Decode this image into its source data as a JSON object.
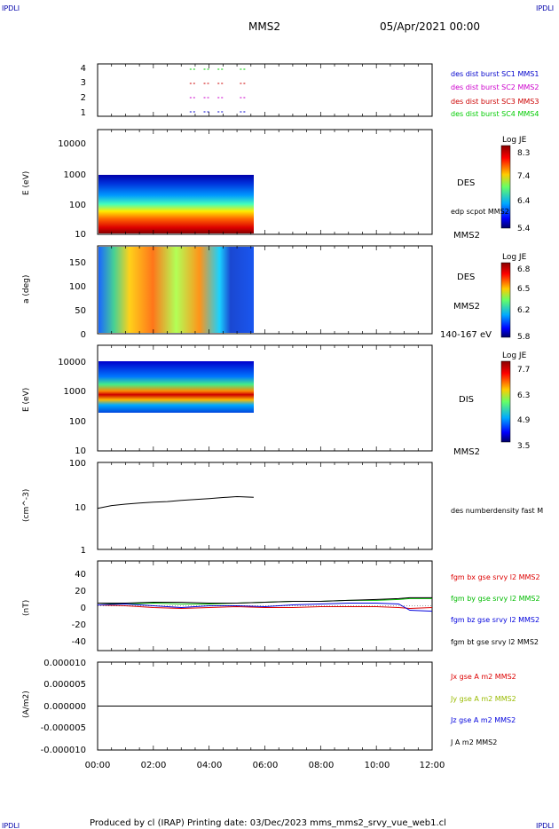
{
  "header": {
    "corner_left": "IPDLI",
    "corner_right": "IPDLI",
    "spacecraft": "MMS2",
    "date": "05/Apr/2021 00:00"
  },
  "footer": {
    "text": "Produced by cl (IRAP)   Printing date: 03/Dec/2023   mms_mms2_srvy_vue_web1.cl",
    "corner_left": "IPDLI",
    "corner_right": "IPDLI"
  },
  "colors": {
    "ch1": "#0000cc",
    "ch2": "#cc00cc",
    "ch3": "#cc0000",
    "ch4": "#00cc00",
    "bx": "#dd0000",
    "by": "#00bb00",
    "bz": "#0000dd",
    "bt": "#000000"
  },
  "chart_data": [
    {
      "type": "scatter",
      "name": "burst availability",
      "ylim": [
        0.5,
        4.5
      ],
      "ytick_labels": [
        "4",
        "3",
        "2",
        "1"
      ],
      "legend": [
        "des dist burst SC1 MMS1",
        "des dist burst SC2 MMS2",
        "des dist burst SC3 MMS3",
        "des dist burst SC4 MMS4"
      ],
      "burst_hours": [
        3.4,
        3.9,
        4.4,
        5.2
      ]
    },
    {
      "type": "heatmap",
      "name": "DES energy spectrogram",
      "ylabel": "E (eV)",
      "ylim": [
        10,
        30000
      ],
      "yscale": "log",
      "ytick_labels": [
        "10000",
        "1000",
        "100",
        "10"
      ],
      "data_hours": [
        0,
        5.6
      ],
      "labels": [
        "DES",
        "edp scpot MMS2",
        "MMS2"
      ],
      "colorbar": {
        "title": "Log JE",
        "ticks": [
          "8.3",
          "7.4",
          "6.4",
          "5.4"
        ]
      }
    },
    {
      "type": "heatmap",
      "name": "DES pitch angle",
      "ylabel": "a (deg)",
      "ylim": [
        0,
        180
      ],
      "ytick_labels": [
        "150",
        "100",
        "50",
        "0"
      ],
      "data_hours": [
        0,
        5.6
      ],
      "labels": [
        "DES",
        "MMS2",
        "140-167 eV"
      ],
      "colorbar": {
        "title": "Log JE",
        "ticks": [
          "6.8",
          "6.5",
          "6.2",
          "5.8"
        ]
      }
    },
    {
      "type": "heatmap",
      "name": "DIS energy spectrogram",
      "ylabel": "E (eV)",
      "ylim": [
        10,
        15000
      ],
      "yscale": "log",
      "ytick_labels": [
        "10000",
        "1000",
        "100",
        "10"
      ],
      "data_hours": [
        0,
        5.6
      ],
      "labels": [
        "DIS",
        "MMS2"
      ],
      "colorbar": {
        "title": "Log JE",
        "ticks": [
          "7.7",
          "6.3",
          "4.9",
          "3.5"
        ]
      }
    },
    {
      "type": "line",
      "name": "density",
      "ylabel": "(cm^-3)",
      "yscale": "log",
      "ylim": [
        1,
        100
      ],
      "ytick_labels": [
        "100",
        "10",
        "1"
      ],
      "legend": [
        "des numberdensity fast M"
      ],
      "x": [
        0,
        0.5,
        1.0,
        1.5,
        2.0,
        2.5,
        3.0,
        3.5,
        4.0,
        4.5,
        5.0,
        5.6
      ],
      "y": [
        8.8,
        10.2,
        11.0,
        11.6,
        12.2,
        12.6,
        13.4,
        14.0,
        14.8,
        15.6,
        16.4,
        15.8
      ]
    },
    {
      "type": "line",
      "name": "magnetic field",
      "ylabel": "(nT)",
      "ylim": [
        -50,
        50
      ],
      "ytick_labels": [
        "40",
        "20",
        "0",
        "-20",
        "-40"
      ],
      "x": [
        0,
        1,
        2,
        3,
        4,
        5,
        6,
        7,
        8,
        9,
        10,
        10.8,
        11.2,
        12
      ],
      "series": [
        {
          "name": "fgm bx gse srvy l2 MMS2",
          "values": [
            1,
            0,
            -2,
            -3,
            -2,
            -1,
            -2,
            -2,
            -1,
            -1,
            -1,
            -2,
            -3,
            -2
          ]
        },
        {
          "name": "fgm by gse srvy l2 MMS2",
          "values": [
            3,
            2,
            3,
            2,
            2,
            3,
            4,
            5,
            5,
            6,
            6,
            7,
            8,
            8
          ]
        },
        {
          "name": "fgm bz gse srvy l2 MMS2",
          "values": [
            1,
            2,
            0,
            -2,
            0,
            0,
            -1,
            1,
            2,
            3,
            3,
            2,
            -5,
            -6
          ]
        },
        {
          "name": "fgm bt gse srvy l2 MMS2",
          "values": [
            3,
            3,
            4,
            4,
            3,
            3,
            4,
            5,
            5,
            6,
            7,
            8,
            9,
            9
          ]
        }
      ]
    },
    {
      "type": "line",
      "name": "current density",
      "ylabel": "(A/m2)",
      "ylim": [
        -1e-05,
        1e-05
      ],
      "ytick_labels": [
        "0.000010",
        "0.000005",
        "0.000000",
        "-0.000005",
        "-0.000010"
      ],
      "x": [
        0,
        12
      ],
      "series": [
        {
          "name": "Jx gse A m2 MMS2",
          "values": [
            0,
            0
          ]
        },
        {
          "name": "Jy gse A m2 MMS2",
          "values": [
            0,
            0
          ]
        },
        {
          "name": "Jz gse A m2 MMS2",
          "values": [
            0,
            0
          ]
        },
        {
          "name": "J A m2 MMS2",
          "values": [
            0,
            0
          ]
        }
      ]
    }
  ],
  "time_axis": {
    "range_hours": [
      0,
      12
    ],
    "tick_labels": [
      "00:00",
      "02:00",
      "04:00",
      "06:00",
      "08:00",
      "10:00",
      "12:00"
    ]
  }
}
